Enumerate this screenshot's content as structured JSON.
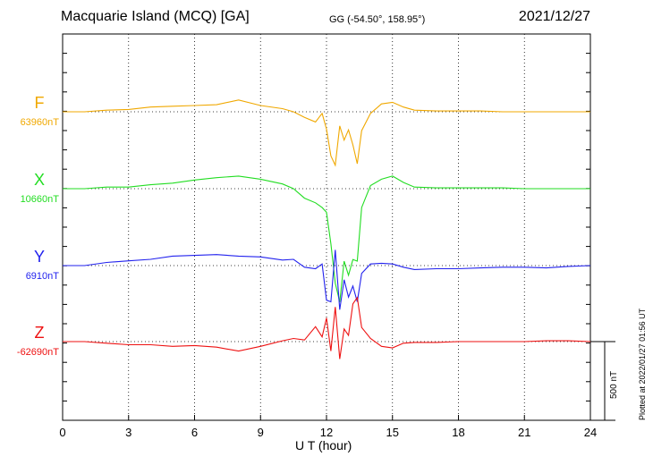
{
  "header": {
    "title": "Macquarie Island (MCQ)  [GA]",
    "coords": "GG (-54.50°, 158.95°)",
    "date": "2021/12/27"
  },
  "plot_note": "Plotted at 2022/01/27 01:56 UT",
  "scale_label": "500 nT",
  "chart_data": {
    "type": "line",
    "xlabel": "U T (hour)",
    "xlim": [
      0,
      24
    ],
    "xticks": [
      "0",
      "3",
      "6",
      "9",
      "12",
      "15",
      "18",
      "21",
      "24"
    ],
    "grid": true,
    "scale_bar_nT": 500,
    "y_unit": "nT (offset from baseline)",
    "x": [
      0,
      1,
      2,
      3,
      4,
      5,
      6,
      7,
      8,
      9,
      10,
      10.5,
      11,
      11.5,
      11.8,
      12.0,
      12.2,
      12.4,
      12.6,
      12.8,
      13.0,
      13.2,
      13.4,
      13.6,
      14.0,
      14.5,
      15,
      15.5,
      16,
      17,
      18,
      19,
      20,
      21,
      22,
      23,
      24
    ],
    "series": [
      {
        "name": "F",
        "baseline": "63960nT",
        "color": "#f0a800",
        "values": [
          0,
          0,
          10,
          15,
          30,
          35,
          40,
          45,
          75,
          40,
          20,
          0,
          -35,
          -65,
          -10,
          -110,
          -280,
          -340,
          -90,
          -180,
          -115,
          -210,
          -330,
          -120,
          -10,
          50,
          60,
          30,
          10,
          5,
          5,
          5,
          0,
          0,
          0,
          0,
          0
        ]
      },
      {
        "name": "X",
        "baseline": "10660nT",
        "color": "#22dd22",
        "values": [
          0,
          0,
          10,
          10,
          25,
          35,
          55,
          70,
          80,
          60,
          30,
          0,
          -60,
          -90,
          -120,
          -150,
          -350,
          -600,
          -720,
          -460,
          -550,
          -450,
          -460,
          -120,
          20,
          60,
          80,
          40,
          10,
          5,
          5,
          5,
          5,
          0,
          0,
          0,
          0
        ]
      },
      {
        "name": "Y",
        "baseline": "6910nT",
        "color": "#2222ee",
        "values": [
          0,
          0,
          20,
          30,
          40,
          60,
          65,
          70,
          60,
          55,
          35,
          40,
          -10,
          -20,
          10,
          -220,
          -230,
          100,
          -280,
          -90,
          -200,
          -130,
          -230,
          -50,
          10,
          15,
          10,
          -10,
          -25,
          -20,
          -20,
          -15,
          -10,
          -10,
          -15,
          -5,
          0
        ]
      },
      {
        "name": "Z",
        "baseline": "-62690nT",
        "color": "#ee1111",
        "values": [
          0,
          0,
          -10,
          -20,
          -20,
          -30,
          -25,
          -35,
          -60,
          -30,
          5,
          20,
          10,
          95,
          30,
          150,
          -60,
          220,
          -110,
          80,
          40,
          240,
          280,
          90,
          20,
          -30,
          -40,
          -10,
          -5,
          -5,
          0,
          0,
          0,
          0,
          5,
          5,
          0
        ]
      }
    ]
  }
}
